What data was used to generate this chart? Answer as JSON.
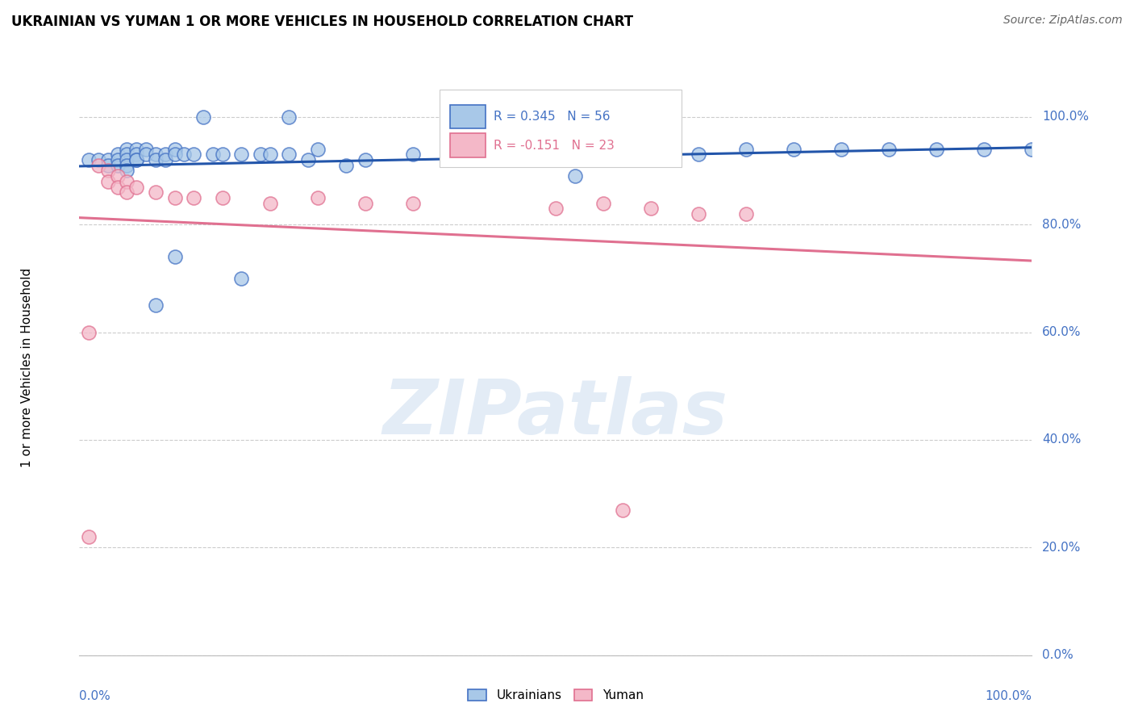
{
  "title": "UKRAINIAN VS YUMAN 1 OR MORE VEHICLES IN HOUSEHOLD CORRELATION CHART",
  "source": "Source: ZipAtlas.com",
  "ylabel": "1 or more Vehicles in Household",
  "ytick_labels": [
    "0.0%",
    "20.0%",
    "40.0%",
    "60.0%",
    "80.0%",
    "100.0%"
  ],
  "ytick_values": [
    0,
    20,
    40,
    60,
    80,
    100
  ],
  "xlim": [
    0,
    100
  ],
  "ylim": [
    0,
    107
  ],
  "watermark": "ZIPatlas",
  "background_color": "#ffffff",
  "grid_color": "#cccccc",
  "title_color": "#000000",
  "source_color": "#666666",
  "axis_label_color": "#4472c4",
  "ukrainian_color": "#a8c8e8",
  "ukrainian_edge_color": "#4472c4",
  "yuman_color": "#f4b8c8",
  "yuman_edge_color": "#e07090",
  "blue_line_color": "#2255aa",
  "pink_line_color": "#e07090",
  "legend_box_color": "#ffffff",
  "legend_box_edge": "#cccccc",
  "ukrainian_points": [
    [
      1,
      92
    ],
    [
      2,
      92
    ],
    [
      3,
      92
    ],
    [
      3,
      91
    ],
    [
      4,
      93
    ],
    [
      4,
      92
    ],
    [
      4,
      91
    ],
    [
      5,
      94
    ],
    [
      5,
      93
    ],
    [
      5,
      92
    ],
    [
      5,
      91
    ],
    [
      5,
      90
    ],
    [
      6,
      94
    ],
    [
      6,
      93
    ],
    [
      6,
      92
    ],
    [
      6,
      92
    ],
    [
      7,
      94
    ],
    [
      7,
      93
    ],
    [
      8,
      93
    ],
    [
      8,
      92
    ],
    [
      9,
      93
    ],
    [
      9,
      92
    ],
    [
      10,
      94
    ],
    [
      10,
      93
    ],
    [
      11,
      93
    ],
    [
      12,
      93
    ],
    [
      13,
      100
    ],
    [
      14,
      93
    ],
    [
      15,
      93
    ],
    [
      17,
      93
    ],
    [
      19,
      93
    ],
    [
      20,
      93
    ],
    [
      22,
      100
    ],
    [
      22,
      93
    ],
    [
      24,
      92
    ],
    [
      25,
      94
    ],
    [
      28,
      91
    ],
    [
      30,
      92
    ],
    [
      35,
      93
    ],
    [
      10,
      74
    ],
    [
      17,
      70
    ],
    [
      8,
      65
    ],
    [
      50,
      92
    ],
    [
      52,
      89
    ],
    [
      55,
      92
    ],
    [
      60,
      94
    ],
    [
      65,
      93
    ],
    [
      70,
      94
    ],
    [
      75,
      94
    ],
    [
      80,
      94
    ],
    [
      85,
      94
    ],
    [
      90,
      94
    ],
    [
      95,
      94
    ],
    [
      100,
      94
    ],
    [
      40,
      93
    ],
    [
      42,
      93
    ]
  ],
  "yuman_points": [
    [
      2,
      91
    ],
    [
      3,
      90
    ],
    [
      3,
      88
    ],
    [
      4,
      89
    ],
    [
      4,
      87
    ],
    [
      5,
      88
    ],
    [
      5,
      86
    ],
    [
      6,
      87
    ],
    [
      8,
      86
    ],
    [
      10,
      85
    ],
    [
      12,
      85
    ],
    [
      15,
      85
    ],
    [
      1,
      60
    ],
    [
      20,
      84
    ],
    [
      25,
      85
    ],
    [
      30,
      84
    ],
    [
      35,
      84
    ],
    [
      50,
      83
    ],
    [
      55,
      84
    ],
    [
      60,
      83
    ],
    [
      65,
      82
    ],
    [
      70,
      82
    ],
    [
      57,
      27
    ],
    [
      1,
      22
    ]
  ]
}
